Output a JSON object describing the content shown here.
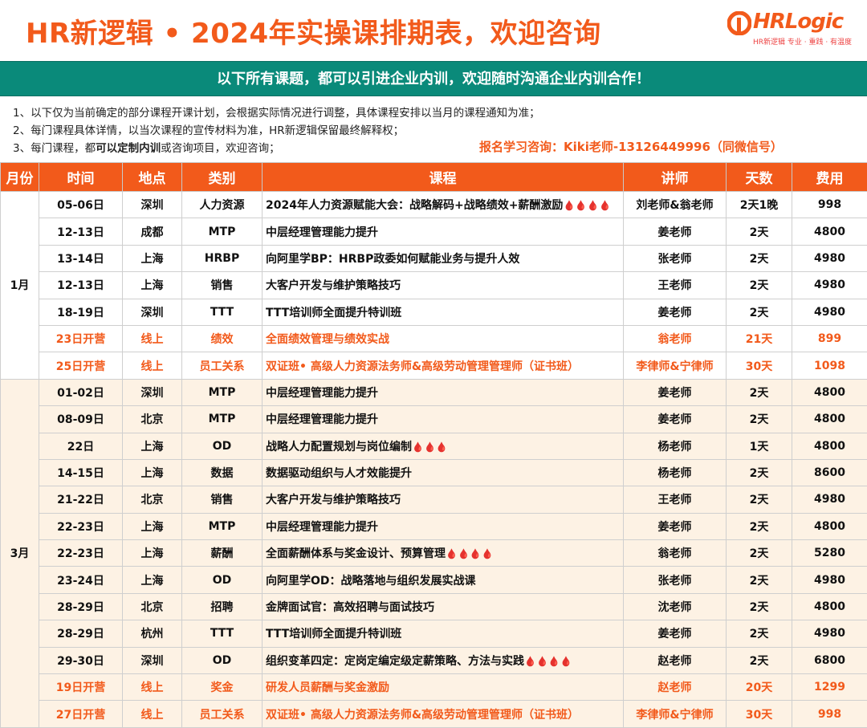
{
  "header": {
    "title": "HR新逻辑 • 2024年实操课排期表，欢迎咨询",
    "logo_text": "HRLogic",
    "logo_tagline": "HR新逻辑 专业 · 重践 · 有温度"
  },
  "banner": {
    "text": "以下所有课题，都可以引进企业内训，欢迎随时沟通企业内训合作！"
  },
  "notes": {
    "line1": "1、以下仅为当前确定的部分课程开课计划，会根据实际情况进行调整，具体课程安排以当月的课程通知为准；",
    "line2": "2、每门课程具体详情，以当次课程的宣传材料为准，HR新逻辑保留最终解释权；",
    "line3_a": "3、每门课程，都",
    "line3_b": "可以定制内训",
    "line3_c": "或咨询项目，欢迎咨询；",
    "contact": "报名学习咨询：Kiki老师-13126449996（同微信号）"
  },
  "table": {
    "headers": [
      "月份",
      "时间",
      "地点",
      "类别",
      "课程",
      "讲师",
      "天数",
      "费用"
    ],
    "months": [
      {
        "label": "1月",
        "rows": [
          {
            "time": "05-06日",
            "place": "深圳",
            "category": "人力资源",
            "course": "2024年人力资源赋能大会：战略解码+战略绩效+薪酬激励",
            "drops": "🩸🩸🩸🩸",
            "teacher": "刘老师&翁老师",
            "days": "2天1晚",
            "fee": "998",
            "hl": false
          },
          {
            "time": "12-13日",
            "place": "成都",
            "category": "MTP",
            "course": "中层经理管理能力提升",
            "drops": "",
            "teacher": "姜老师",
            "days": "2天",
            "fee": "4800",
            "hl": false
          },
          {
            "time": "13-14日",
            "place": "上海",
            "category": "HRBP",
            "course": "向阿里学BP：HRBP政委如何赋能业务与提升人效",
            "drops": "",
            "teacher": "张老师",
            "days": "2天",
            "fee": "4980",
            "hl": false
          },
          {
            "time": "12-13日",
            "place": "上海",
            "category": "销售",
            "course": "大客户开发与维护策略技巧",
            "drops": "",
            "teacher": "王老师",
            "days": "2天",
            "fee": "4980",
            "hl": false
          },
          {
            "time": "18-19日",
            "place": "深圳",
            "category": "TTT",
            "course": "TTT培训师全面提升特训班",
            "drops": "",
            "teacher": "姜老师",
            "days": "2天",
            "fee": "4980",
            "hl": false
          },
          {
            "time": "23日开营",
            "place": "线上",
            "category": "绩效",
            "course": "全面绩效管理与绩效实战",
            "drops": "",
            "teacher": "翁老师",
            "days": "21天",
            "fee": "899",
            "hl": true
          },
          {
            "time": "25日开营",
            "place": "线上",
            "category": "员工关系",
            "course": "双证班• 高级人力资源法务师&高级劳动管理管理师（证书班）",
            "drops": "",
            "teacher": "李律师&宁律师",
            "days": "30天",
            "fee": "1098",
            "hl": true
          }
        ]
      },
      {
        "label": "3月",
        "rows": [
          {
            "time": "01-02日",
            "place": "深圳",
            "category": "MTP",
            "course": "中层经理管理能力提升",
            "drops": "",
            "teacher": "姜老师",
            "days": "2天",
            "fee": "4800",
            "hl": false
          },
          {
            "time": "08-09日",
            "place": "北京",
            "category": "MTP",
            "course": "中层经理管理能力提升",
            "drops": "",
            "teacher": "姜老师",
            "days": "2天",
            "fee": "4800",
            "hl": false
          },
          {
            "time": "22日",
            "place": "上海",
            "category": "OD",
            "course": "战略人力配置规划与岗位编制",
            "drops": "🩸🩸🩸",
            "teacher": "杨老师",
            "days": "1天",
            "fee": "4800",
            "hl": false
          },
          {
            "time": "14-15日",
            "place": "上海",
            "category": "数据",
            "course": "数据驱动组织与人才效能提升",
            "drops": "",
            "teacher": "杨老师",
            "days": "2天",
            "fee": "8600",
            "hl": false
          },
          {
            "time": "21-22日",
            "place": "北京",
            "category": "销售",
            "course": "大客户开发与维护策略技巧",
            "drops": "",
            "teacher": "王老师",
            "days": "2天",
            "fee": "4980",
            "hl": false
          },
          {
            "time": "22-23日",
            "place": "上海",
            "category": "MTP",
            "course": "中层经理管理能力提升",
            "drops": "",
            "teacher": "姜老师",
            "days": "2天",
            "fee": "4800",
            "hl": false
          },
          {
            "time": "22-23日",
            "place": "上海",
            "category": "薪酬",
            "course": "全面薪酬体系与奖金设计、预算管理",
            "drops": "🩸🩸🩸🩸",
            "teacher": "翁老师",
            "days": "2天",
            "fee": "5280",
            "hl": false
          },
          {
            "time": "23-24日",
            "place": "上海",
            "category": "OD",
            "course": "向阿里学OD：战略落地与组织发展实战课",
            "drops": "",
            "teacher": "张老师",
            "days": "2天",
            "fee": "4980",
            "hl": false
          },
          {
            "time": "28-29日",
            "place": "北京",
            "category": "招聘",
            "course": "金牌面试官：高效招聘与面试技巧",
            "drops": "",
            "teacher": "沈老师",
            "days": "2天",
            "fee": "4800",
            "hl": false
          },
          {
            "time": "28-29日",
            "place": "杭州",
            "category": "TTT",
            "course": "TTT培训师全面提升特训班",
            "drops": "",
            "teacher": "姜老师",
            "days": "2天",
            "fee": "4980",
            "hl": false
          },
          {
            "time": "29-30日",
            "place": "深圳",
            "category": "OD",
            "course": "组织变革四定：定岗定编定级定薪策略、方法与实践",
            "drops": "🩸🩸🩸🩸",
            "teacher": "赵老师",
            "days": "2天",
            "fee": "6800",
            "hl": false
          },
          {
            "time": "19日开营",
            "place": "线上",
            "category": "奖金",
            "course": "研发人员薪酬与奖金激励",
            "drops": "",
            "teacher": "赵老师",
            "days": "20天",
            "fee": "1299",
            "hl": true
          },
          {
            "time": "27日开营",
            "place": "线上",
            "category": "员工关系",
            "course": "双证班• 高级人力资源法务师&高级劳动管理管理师（证书班）",
            "drops": "",
            "teacher": "李律师&宁律师",
            "days": "30天",
            "fee": "998",
            "hl": true
          }
        ]
      }
    ]
  }
}
